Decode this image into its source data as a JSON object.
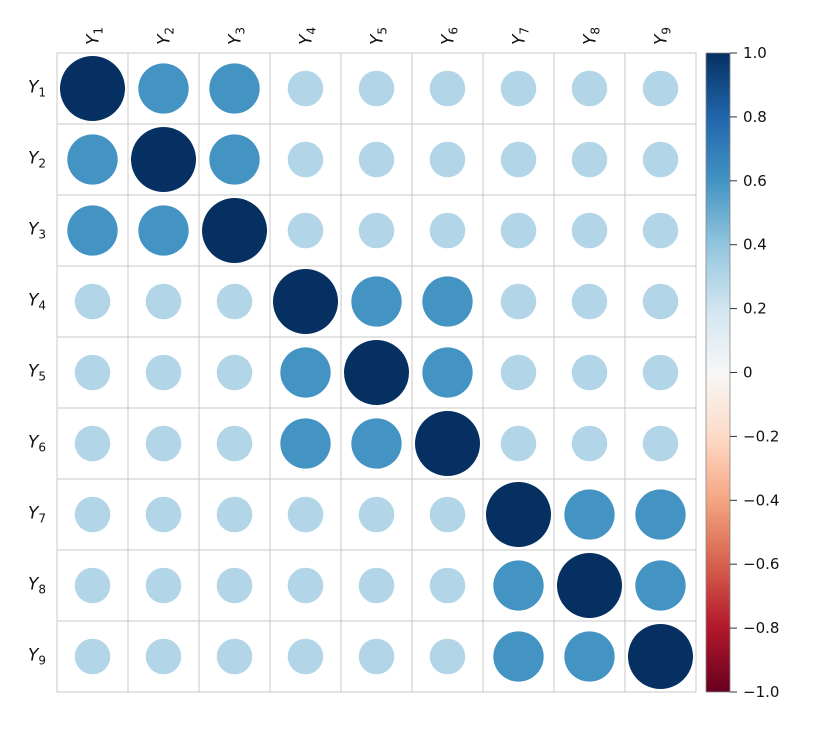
{
  "chart_data": {
    "type": "heatmap",
    "variables": [
      {
        "base": "Y",
        "sub": "1"
      },
      {
        "base": "Y",
        "sub": "2"
      },
      {
        "base": "Y",
        "sub": "3"
      },
      {
        "base": "Y",
        "sub": "4"
      },
      {
        "base": "Y",
        "sub": "5"
      },
      {
        "base": "Y",
        "sub": "6"
      },
      {
        "base": "Y",
        "sub": "7"
      },
      {
        "base": "Y",
        "sub": "8"
      },
      {
        "base": "Y",
        "sub": "9"
      }
    ],
    "matrix": [
      [
        1.0,
        0.6,
        0.6,
        0.3,
        0.3,
        0.3,
        0.3,
        0.3,
        0.3
      ],
      [
        0.6,
        1.0,
        0.6,
        0.3,
        0.3,
        0.3,
        0.3,
        0.3,
        0.3
      ],
      [
        0.6,
        0.6,
        1.0,
        0.3,
        0.3,
        0.3,
        0.3,
        0.3,
        0.3
      ],
      [
        0.3,
        0.3,
        0.3,
        1.0,
        0.6,
        0.6,
        0.3,
        0.3,
        0.3
      ],
      [
        0.3,
        0.3,
        0.3,
        0.6,
        1.0,
        0.6,
        0.3,
        0.3,
        0.3
      ],
      [
        0.3,
        0.3,
        0.3,
        0.6,
        0.6,
        1.0,
        0.3,
        0.3,
        0.3
      ],
      [
        0.3,
        0.3,
        0.3,
        0.3,
        0.3,
        0.3,
        1.0,
        0.6,
        0.6
      ],
      [
        0.3,
        0.3,
        0.3,
        0.3,
        0.3,
        0.3,
        0.6,
        1.0,
        0.6
      ],
      [
        0.3,
        0.3,
        0.3,
        0.3,
        0.3,
        0.3,
        0.6,
        0.6,
        1.0
      ]
    ],
    "glyph": "circle",
    "grid": true,
    "colorbar": {
      "position": "right",
      "range": [
        -1.0,
        1.0
      ],
      "ticks": [
        1.0,
        0.8,
        0.6,
        0.4,
        0.2,
        0,
        -0.2,
        -0.4,
        -0.6,
        -0.8,
        -1.0
      ],
      "tick_labels": [
        "1.0",
        "0.8",
        "0.6",
        "0.4",
        "0.2",
        "0",
        "−0.2",
        "−0.4",
        "−0.6",
        "−0.8",
        "−1.0"
      ],
      "colors_top_to_bottom": [
        "#053061",
        "#2166ac",
        "#4393c3",
        "#92c5de",
        "#d1e5f0",
        "#f7f7f7",
        "#fddbc7",
        "#f4a582",
        "#d6604d",
        "#b2182b",
        "#67001f"
      ]
    }
  }
}
